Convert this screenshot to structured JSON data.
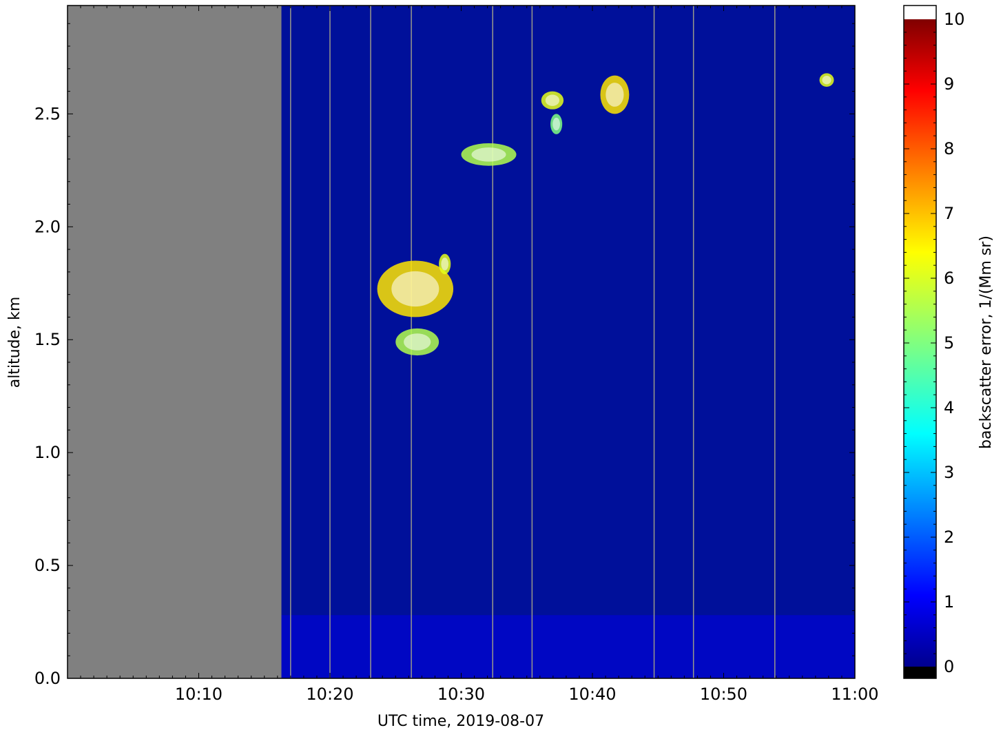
{
  "chart_data": {
    "type": "heatmap",
    "title": "",
    "xlabel": "UTC time,  2019-08-07",
    "ylabel": "altitude, km",
    "colorbar_label": "backscatter error, 1/(Mm sr)",
    "x_range": [
      "10:00",
      "11:00"
    ],
    "x_tick_labels": [
      "10:10",
      "10:20",
      "10:30",
      "10:40",
      "10:50",
      "11:00"
    ],
    "x_tick_minutes": [
      10,
      20,
      30,
      40,
      50,
      60
    ],
    "y_range": [
      0.0,
      2.98
    ],
    "y_ticks": [
      0.0,
      0.5,
      1.0,
      1.5,
      2.0,
      2.5
    ],
    "y_tick_labels": [
      "0.0",
      "0.5",
      "1.0",
      "1.5",
      "2.0",
      "2.5"
    ],
    "colorbar_range": [
      0,
      10
    ],
    "colorbar_ticks": [
      0,
      1,
      2,
      3,
      4,
      5,
      6,
      7,
      8,
      9,
      10
    ],
    "colorbar_tick_labels": [
      "0",
      "1",
      "2",
      "3",
      "4",
      "5",
      "6",
      "7",
      "8",
      "9",
      "10"
    ],
    "colormap": "jet",
    "over_color": "#ffffff",
    "under_color": "#000000",
    "missing_color": "#808080",
    "background_color": "#00109a",
    "no_data_interval_minutes": [
      0,
      16.3
    ],
    "gap_line_minutes": [
      17.0,
      20.0,
      23.1,
      26.2,
      32.4,
      35.4,
      44.7,
      47.7,
      53.9
    ],
    "near_surface_layer": {
      "altitude_km": [
        0.0,
        0.28
      ],
      "value": 1.0
    },
    "features": [
      {
        "minute_range": [
          23.6,
          29.4
        ],
        "altitude_km": [
          1.6,
          1.85
        ],
        "value": 6.5
      },
      {
        "minute_range": [
          25.0,
          28.3
        ],
        "altitude_km": [
          1.43,
          1.55
        ],
        "value": 5.5
      },
      {
        "minute_range": [
          28.3,
          29.2
        ],
        "altitude_km": [
          1.79,
          1.88
        ],
        "value": 6.0
      },
      {
        "minute_range": [
          30.0,
          34.2
        ],
        "altitude_km": [
          2.27,
          2.37
        ],
        "value": 5.5
      },
      {
        "minute_range": [
          36.1,
          37.8
        ],
        "altitude_km": [
          2.52,
          2.6
        ],
        "value": 6.0
      },
      {
        "minute_range": [
          36.8,
          37.7
        ],
        "altitude_km": [
          2.41,
          2.5
        ],
        "value": 5.0
      },
      {
        "minute_range": [
          40.6,
          42.8
        ],
        "altitude_km": [
          2.5,
          2.67
        ],
        "value": 6.5
      },
      {
        "minute_range": [
          57.3,
          58.4
        ],
        "altitude_km": [
          2.62,
          2.68
        ],
        "value": 6.0
      }
    ]
  }
}
